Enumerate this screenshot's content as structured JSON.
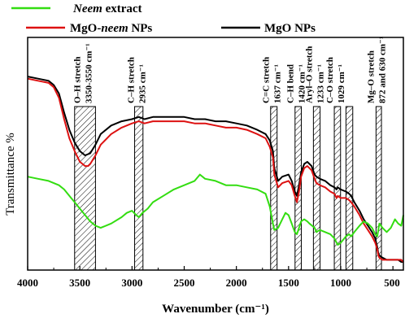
{
  "chart_data": {
    "type": "line",
    "xlabel": "Wavenumber (cm⁻¹)",
    "ylabel": "Transmittance %",
    "xlim": [
      4000,
      400
    ],
    "x_reversed": true,
    "ylim": [
      0,
      100
    ],
    "y_ticks_shown": false,
    "x_ticks": [
      4000,
      3500,
      3000,
      2500,
      2000,
      1500,
      1000,
      500
    ],
    "legend": {
      "placement": "top",
      "entries": [
        {
          "label_italic": "Neem",
          "label_rest": " extract",
          "color": "#33dd11"
        },
        {
          "label_rest": "MgO-",
          "label_italic": "neem",
          "label_tail": " NPs",
          "color": "#dd1111"
        },
        {
          "label_rest": "MgO NPs",
          "color": "#000000"
        }
      ]
    },
    "bands": [
      {
        "name": "O–H stretch",
        "value": "3350-3550 cm⁻¹",
        "from": 3550,
        "to": 3350
      },
      {
        "name": "C–H stretch",
        "value": "2935 cm⁻¹",
        "from": 2975,
        "to": 2895
      },
      {
        "name": "C=C stretch",
        "value": "1637 cm⁻¹",
        "from": 1672,
        "to": 1610
      },
      {
        "name": "C–H bend",
        "value": "1420 cm⁻¹",
        "from": 1438,
        "to": 1378
      },
      {
        "name": "Aryl–O stretch",
        "value": "1233 cm⁻¹",
        "from": 1262,
        "to": 1198
      },
      {
        "name": "C–O stretch",
        "value": "1029 cm⁻¹",
        "from": 1062,
        "to": 1002
      },
      {
        "name": "",
        "value": "",
        "from": 950,
        "to": 885
      },
      {
        "name": "Mg–O stretch",
        "value": "872 and  630 cm⁻¹",
        "from": 662,
        "to": 610
      }
    ],
    "series": [
      {
        "name": "MgO NPs",
        "color": "#000000",
        "x": [
          4000,
          3900,
          3800,
          3750,
          3700,
          3650,
          3600,
          3550,
          3500,
          3450,
          3400,
          3350,
          3300,
          3200,
          3100,
          3000,
          2935,
          2880,
          2800,
          2700,
          2600,
          2500,
          2400,
          2300,
          2200,
          2100,
          2000,
          1900,
          1800,
          1720,
          1680,
          1650,
          1637,
          1600,
          1560,
          1500,
          1470,
          1440,
          1420,
          1400,
          1380,
          1350,
          1320,
          1300,
          1280,
          1250,
          1233,
          1200,
          1150,
          1100,
          1060,
          1040,
          1029,
          1000,
          950,
          920,
          900,
          870,
          820,
          780,
          740,
          700,
          670,
          650,
          640,
          630,
          600,
          560,
          520,
          480,
          450,
          420,
          400
        ],
        "y": [
          87,
          86,
          85,
          83,
          79,
          70,
          62,
          56,
          52,
          50,
          51,
          55,
          60,
          64,
          66,
          67,
          68,
          67,
          68,
          68,
          68,
          68,
          67,
          67,
          66,
          66,
          65,
          64,
          62,
          60,
          57,
          52,
          44,
          38,
          40,
          41,
          38,
          33,
          31,
          36,
          42,
          46,
          47,
          46,
          45,
          41,
          40,
          39,
          38,
          36,
          35,
          34,
          35,
          34,
          33,
          32,
          31,
          28,
          24,
          20,
          17,
          14,
          11,
          7,
          4,
          3,
          2,
          1,
          1,
          1,
          1,
          0,
          0
        ]
      },
      {
        "name": "MgO-neem NPs",
        "color": "#dd1111",
        "x": [
          4000,
          3900,
          3800,
          3750,
          3700,
          3650,
          3600,
          3550,
          3500,
          3450,
          3420,
          3400,
          3350,
          3300,
          3200,
          3100,
          3000,
          2935,
          2880,
          2800,
          2700,
          2600,
          2500,
          2400,
          2300,
          2200,
          2100,
          2000,
          1900,
          1800,
          1720,
          1680,
          1650,
          1637,
          1600,
          1560,
          1500,
          1470,
          1440,
          1420,
          1400,
          1380,
          1350,
          1320,
          1300,
          1280,
          1250,
          1233,
          1200,
          1150,
          1100,
          1060,
          1040,
          1029,
          1000,
          950,
          920,
          900,
          870,
          820,
          780,
          740,
          700,
          670,
          650,
          640,
          630,
          600,
          560,
          520,
          480,
          450,
          420,
          400
        ],
        "y": [
          86,
          85,
          84,
          82,
          77,
          67,
          58,
          52,
          47,
          45,
          45,
          46,
          50,
          55,
          60,
          63,
          65,
          66,
          65,
          66,
          66,
          66,
          66,
          65,
          65,
          64,
          63,
          63,
          62,
          60,
          58,
          54,
          49,
          41,
          35,
          37,
          38,
          36,
          31,
          28,
          33,
          40,
          44,
          45,
          44,
          43,
          39,
          37,
          36,
          35,
          33,
          32,
          30,
          31,
          30,
          30,
          29,
          28,
          26,
          22,
          18,
          15,
          12,
          9,
          6,
          3,
          2,
          1,
          1,
          1,
          1,
          1,
          1,
          0
        ]
      },
      {
        "name": "Neem extract",
        "color": "#33dd11",
        "x": [
          4000,
          3900,
          3800,
          3700,
          3650,
          3600,
          3550,
          3500,
          3450,
          3400,
          3350,
          3300,
          3200,
          3100,
          3050,
          3000,
          2960,
          2935,
          2900,
          2850,
          2800,
          2700,
          2600,
          2500,
          2400,
          2350,
          2300,
          2200,
          2100,
          2000,
          1900,
          1800,
          1720,
          1680,
          1650,
          1637,
          1600,
          1560,
          1530,
          1500,
          1470,
          1440,
          1420,
          1400,
          1380,
          1350,
          1320,
          1300,
          1250,
          1233,
          1200,
          1150,
          1100,
          1060,
          1040,
          1029,
          1000,
          950,
          920,
          900,
          870,
          820,
          780,
          740,
          700,
          670,
          650,
          640,
          630,
          600,
          560,
          520,
          480,
          450,
          420,
          400
        ],
        "y": [
          40,
          39,
          38,
          36,
          34,
          31,
          28,
          25,
          22,
          19,
          17,
          16,
          18,
          21,
          23,
          24,
          22,
          21,
          23,
          25,
          28,
          31,
          34,
          36,
          38,
          41,
          39,
          38,
          36,
          36,
          35,
          34,
          32,
          26,
          18,
          15,
          16,
          20,
          23,
          22,
          18,
          14,
          13,
          16,
          19,
          20,
          19,
          18,
          16,
          14,
          15,
          14,
          13,
          11,
          9,
          8,
          9,
          12,
          13,
          12,
          14,
          17,
          19,
          18,
          16,
          13,
          12,
          15,
          18,
          16,
          14,
          16,
          20,
          18,
          17,
          22
        ]
      }
    ]
  }
}
